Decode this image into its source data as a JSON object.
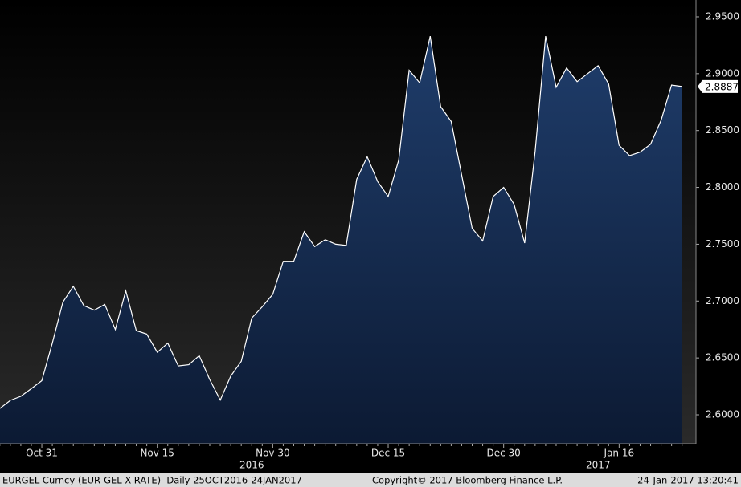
{
  "chart_data": {
    "type": "area",
    "categories": [
      null,
      null,
      null,
      null,
      "Oct 31",
      null,
      null,
      null,
      null,
      null,
      null,
      null,
      null,
      null,
      null,
      "Nov 15",
      null,
      null,
      null,
      null,
      null,
      null,
      null,
      null,
      null,
      null,
      "Nov 30",
      null,
      null,
      null,
      null,
      null,
      null,
      null,
      null,
      null,
      null,
      "Dec 15",
      null,
      null,
      null,
      null,
      null,
      null,
      null,
      null,
      null,
      null,
      "Dec 30",
      null,
      null,
      null,
      null,
      null,
      null,
      null,
      null,
      null,
      null,
      "Jan 16",
      null,
      null,
      null,
      null,
      null,
      null
    ],
    "x_group_labels": [
      {
        "label": "2016",
        "category": 24
      },
      {
        "label": "2017",
        "category": 57
      }
    ],
    "series": [
      {
        "name": "EURGEL Curncy",
        "color": "#ffffff",
        "fill": "#1a3560",
        "values": [
          2.6056,
          2.6127,
          2.6162,
          2.623,
          2.63,
          2.663,
          2.699,
          2.713,
          2.696,
          2.692,
          2.697,
          2.675,
          2.709,
          2.674,
          2.671,
          2.655,
          2.663,
          2.643,
          2.644,
          2.652,
          2.631,
          2.613,
          2.634,
          2.647,
          2.685,
          2.695,
          2.706,
          2.735,
          2.735,
          2.761,
          2.748,
          2.754,
          2.75,
          2.749,
          2.807,
          2.827,
          2.805,
          2.792,
          2.824,
          2.903,
          2.892,
          2.933,
          2.871,
          2.858,
          2.811,
          2.764,
          2.753,
          2.792,
          2.8,
          2.785,
          2.751,
          2.832,
          2.933,
          2.888,
          2.905,
          2.893,
          2.9,
          2.907,
          2.891,
          2.837,
          2.828,
          2.831,
          2.838,
          2.859,
          2.89,
          2.8887
        ]
      }
    ],
    "ylim": [
      2.5746,
      2.9648
    ],
    "yticks": [
      {
        "value": 2.6,
        "label": "2.6000"
      },
      {
        "value": 2.65,
        "label": "2.6500"
      },
      {
        "value": 2.7,
        "label": "2.7000"
      },
      {
        "value": 2.75,
        "label": "2.7500"
      },
      {
        "value": 2.8,
        "label": "2.8000"
      },
      {
        "value": 2.85,
        "label": "2.8500"
      },
      {
        "value": 2.9,
        "label": "2.9000"
      },
      {
        "value": 2.95,
        "label": "2.9500"
      }
    ],
    "grid": false
  },
  "footer": {
    "left": "EURGEL Curncy (EUR-GEL X-RATE)  Daily 25OCT2016-24JAN2017",
    "center": "Copyright© 2017 Bloomberg Finance L.P.",
    "right": "24-Jan-2017 13:20:41"
  }
}
